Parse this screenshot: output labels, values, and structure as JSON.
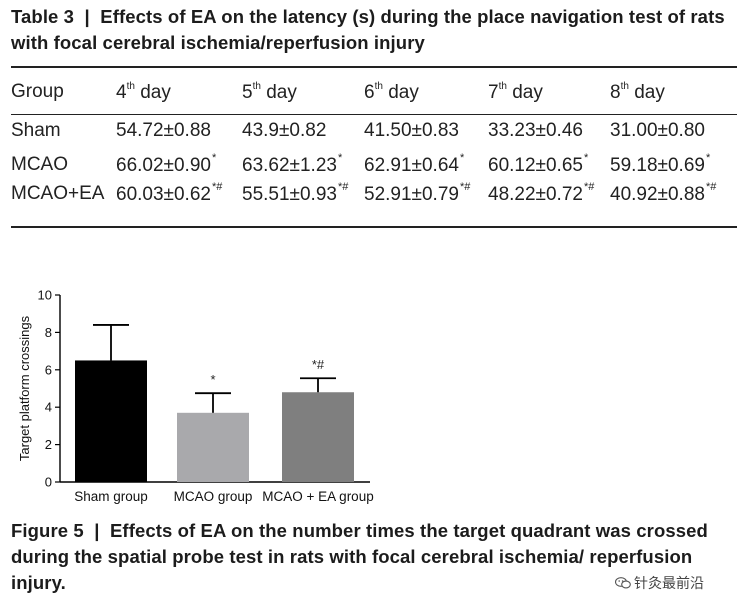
{
  "table": {
    "caption": "Table 3  |  Effects of EA on the latency (s) during the place navigation test of rats with focal cerebral ischemia/reperfusion injury",
    "headers": [
      {
        "text": "Group",
        "sup": ""
      },
      {
        "text": "4",
        "sup": "th",
        "suffix": " day"
      },
      {
        "text": "5",
        "sup": "th",
        "suffix": " day"
      },
      {
        "text": "6",
        "sup": "th",
        "suffix": " day"
      },
      {
        "text": "7",
        "sup": "th",
        "suffix": " day"
      },
      {
        "text": "8",
        "sup": "th",
        "suffix": " day"
      }
    ],
    "rows": [
      {
        "group": "Sham",
        "cells": [
          {
            "v": "54.72±0.88",
            "m": ""
          },
          {
            "v": "43.9±0.82",
            "m": ""
          },
          {
            "v": "41.50±0.83",
            "m": ""
          },
          {
            "v": "33.23±0.46",
            "m": ""
          },
          {
            "v": "31.00±0.80",
            "m": ""
          }
        ]
      },
      {
        "group": "MCAO",
        "cells": [
          {
            "v": "66.02±0.90",
            "m": "*"
          },
          {
            "v": "63.62±1.23",
            "m": "*"
          },
          {
            "v": "62.91±0.64",
            "m": "*"
          },
          {
            "v": "60.12±0.65",
            "m": "*"
          },
          {
            "v": "59.18±0.69",
            "m": "*"
          }
        ]
      },
      {
        "group": "MCAO+EA",
        "cells": [
          {
            "v": "60.03±0.62",
            "m": "*#"
          },
          {
            "v": "55.51±0.93",
            "m": "*#"
          },
          {
            "v": "52.91±0.79",
            "m": "*#"
          },
          {
            "v": "48.22±0.72",
            "m": "*#"
          },
          {
            "v": "40.92±0.88",
            "m": "*#"
          }
        ]
      }
    ]
  },
  "figure": {
    "caption": "Figure 5  |  Effects of EA on the number times the target quadrant was crossed during the spatial probe test in rats with focal cerebral ischemia/ reperfusion injury."
  },
  "chart_data": {
    "type": "bar",
    "ylabel": "Target platform crossings",
    "xlabel": "",
    "ylim": [
      0,
      10
    ],
    "yticks": [
      0,
      2,
      4,
      6,
      8,
      10
    ],
    "categories": [
      "Sham group",
      "MCAO group",
      "MCAO + EA group"
    ],
    "values": [
      6.5,
      3.7,
      4.8
    ],
    "errors": [
      1.9,
      1.05,
      0.75
    ],
    "annotations": [
      "",
      "*",
      "*#"
    ],
    "bar_colors": [
      "#000000",
      "#a9a9ac",
      "#7f7f7f"
    ],
    "error_bar_style": "upper-only"
  },
  "watermark": {
    "text": "针灸最前沿",
    "icon": "wechat-icon"
  }
}
